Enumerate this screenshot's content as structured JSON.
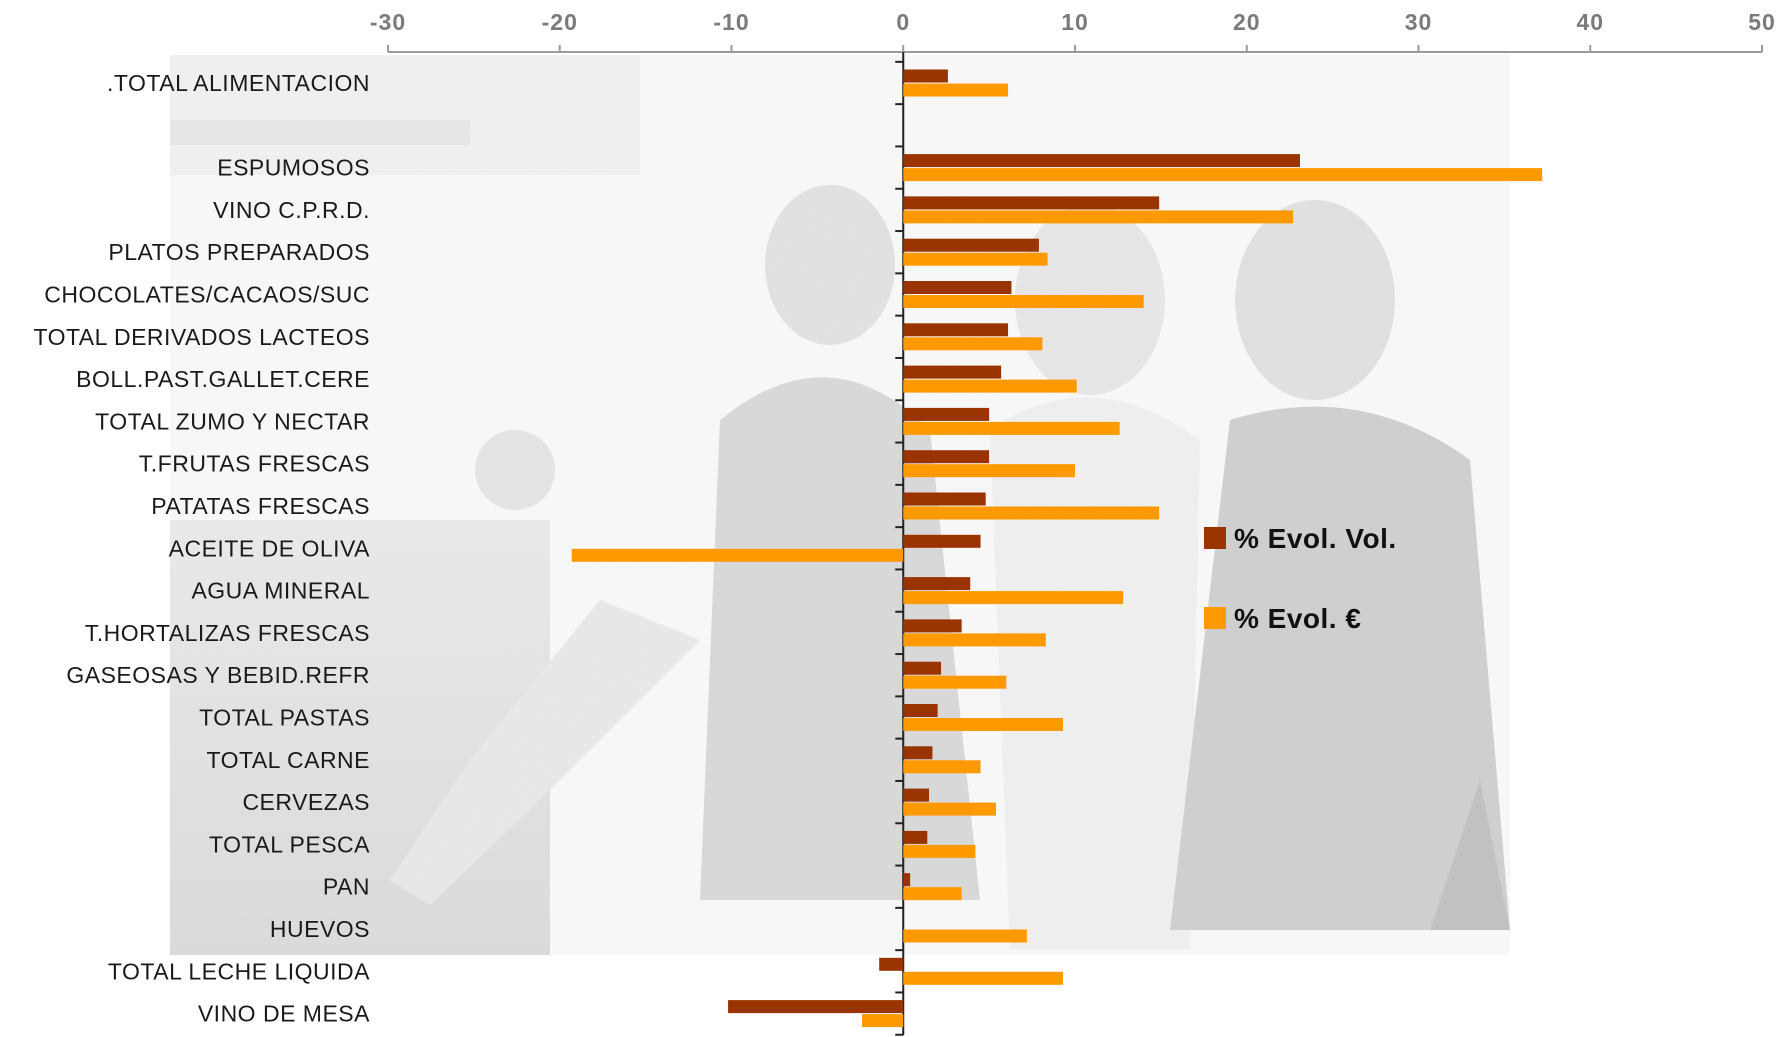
{
  "chart_data": {
    "type": "bar",
    "orientation": "horizontal",
    "categories": [
      ".TOTAL ALIMENTACION",
      "",
      "ESPUMOSOS",
      "VINO C.P.R.D.",
      "PLATOS PREPARADOS",
      "CHOCOLATES/CACAOS/SUC",
      "TOTAL DERIVADOS LACTEOS",
      "BOLL.PAST.GALLET.CERE",
      "TOTAL ZUMO Y NECTAR",
      "T.FRUTAS FRESCAS",
      "PATATAS FRESCAS",
      "ACEITE DE OLIVA",
      "AGUA MINERAL",
      "T.HORTALIZAS FRESCAS",
      "GASEOSAS Y BEBID.REFR",
      "TOTAL PASTAS",
      "TOTAL CARNE",
      "CERVEZAS",
      "TOTAL PESCA",
      "PAN",
      "HUEVOS",
      "TOTAL LECHE LIQUIDA",
      "VINO DE MESA"
    ],
    "series": [
      {
        "name": "% Evol. Vol.",
        "color": "#993300",
        "values": [
          2.6,
          null,
          23.1,
          14.9,
          7.9,
          6.3,
          6.1,
          5.7,
          5.0,
          5.0,
          4.8,
          4.5,
          3.9,
          3.4,
          2.2,
          2.0,
          1.7,
          1.5,
          1.4,
          0.4,
          0.0,
          -1.4,
          -10.2
        ]
      },
      {
        "name": "% Evol. €",
        "color": "#ff9900",
        "values": [
          6.1,
          null,
          37.2,
          22.7,
          8.4,
          14.0,
          8.1,
          10.1,
          12.6,
          10.0,
          14.9,
          -19.3,
          12.8,
          8.3,
          6.0,
          9.3,
          4.5,
          5.4,
          4.2,
          3.4,
          7.2,
          9.3,
          -2.4
        ]
      }
    ],
    "xlim": [
      -30,
      50
    ],
    "xticks": [
      -30,
      -20,
      -10,
      0,
      10,
      20,
      30,
      40,
      50
    ],
    "axis_position": "top",
    "grid": false,
    "legend": "right-center",
    "background": "grayscale photograph of a group of young people"
  }
}
